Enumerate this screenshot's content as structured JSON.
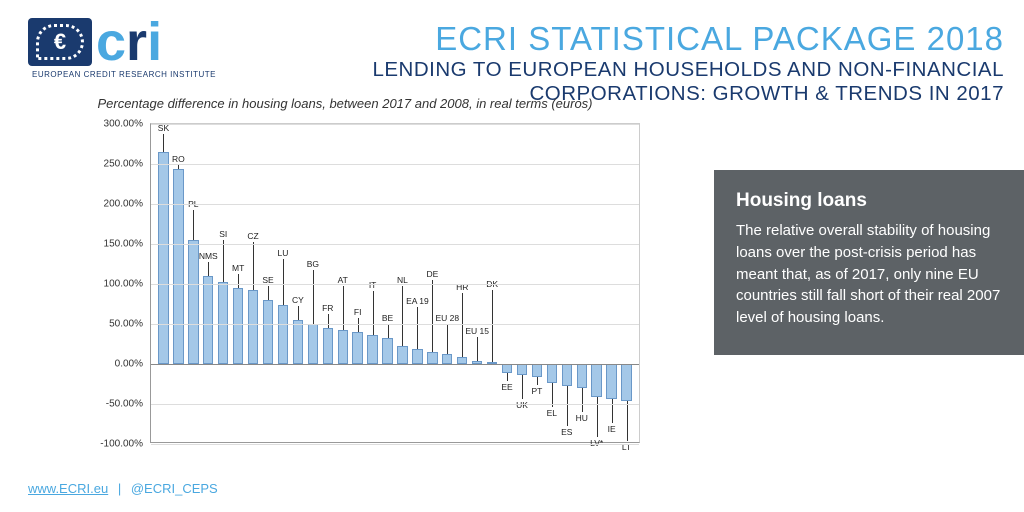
{
  "logo": {
    "subtitle": "EUROPEAN CREDIT RESEARCH INSTITUTE"
  },
  "title": {
    "main": "ECRI STATISTICAL PACKAGE 2018",
    "main_color": "#4aa8e0",
    "sub": "LENDING TO EUROPEAN HOUSEHOLDS AND NON-FINANCIAL CORPORATIONS: GROWTH & TRENDS IN 2017",
    "sub_color": "#1a3a6e"
  },
  "chart": {
    "caption": "Percentage difference in housing loans, between 2017 and 2008, in real terms (euros)",
    "type": "bar",
    "ylim": [
      -100,
      300
    ],
    "ytick_step": 50,
    "ytick_format": "percent_2dp",
    "grid_color": "#dddddd",
    "axis_color": "#999999",
    "bar_fill": "#a4c8e8",
    "bar_border": "#6a98c8",
    "label_fontsize": 8.5,
    "caption_fontsize": 13,
    "series": [
      {
        "code": "SK",
        "value": 265,
        "leader": 18
      },
      {
        "code": "RO",
        "value": 244,
        "leader": 4
      },
      {
        "code": "PL",
        "value": 155,
        "leader": 30
      },
      {
        "code": "NMS",
        "value": 110,
        "leader": 14
      },
      {
        "code": "SI",
        "value": 102,
        "leader": 42
      },
      {
        "code": "MT",
        "value": 95,
        "leader": 14
      },
      {
        "code": "CZ",
        "value": 92,
        "leader": 48
      },
      {
        "code": "SE",
        "value": 80,
        "leader": 14
      },
      {
        "code": "LU",
        "value": 74,
        "leader": 46
      },
      {
        "code": "CY",
        "value": 55,
        "leader": 14
      },
      {
        "code": "BG",
        "value": 50,
        "leader": 54
      },
      {
        "code": "FR",
        "value": 45,
        "leader": 14
      },
      {
        "code": "AT",
        "value": 42,
        "leader": 44
      },
      {
        "code": "FI",
        "value": 40,
        "leader": 14
      },
      {
        "code": "IT",
        "value": 36,
        "leader": 44
      },
      {
        "code": "BE",
        "value": 32,
        "leader": 14
      },
      {
        "code": "NL",
        "value": 22,
        "leader": 60
      },
      {
        "code": "EA 19",
        "value": 18,
        "leader": 42
      },
      {
        "code": "DE",
        "value": 15,
        "leader": 72
      },
      {
        "code": "EU 28",
        "value": 12,
        "leader": 30
      },
      {
        "code": "HR",
        "value": 8,
        "leader": 64
      },
      {
        "code": "EU 15",
        "value": 4,
        "leader": 24
      },
      {
        "code": "DK",
        "value": 2,
        "leader": 72
      },
      {
        "code": "EE",
        "value": -12,
        "leader": 8
      },
      {
        "code": "UK",
        "value": -14,
        "leader": 24
      },
      {
        "code": "PT",
        "value": -16,
        "leader": 8
      },
      {
        "code": "EL",
        "value": -24,
        "leader": 24
      },
      {
        "code": "ES",
        "value": -28,
        "leader": 40
      },
      {
        "code": "HU",
        "value": -30,
        "leader": 24
      },
      {
        "code": "LV*",
        "value": -42,
        "leader": 40
      },
      {
        "code": "IE",
        "value": -44,
        "leader": 24
      },
      {
        "code": "LT",
        "value": -46,
        "leader": 40
      }
    ]
  },
  "panel": {
    "bg": "#5d6266",
    "title": "Housing loans",
    "body": "The relative overall stability of housing loans over the post-crisis period has meant that, as of 2017, only nine EU countries still fall short of their real 2007 level of housing loans."
  },
  "footer": {
    "link": "www.ECRI.eu",
    "sep": "|",
    "handle": "@ECRI_CEPS"
  }
}
